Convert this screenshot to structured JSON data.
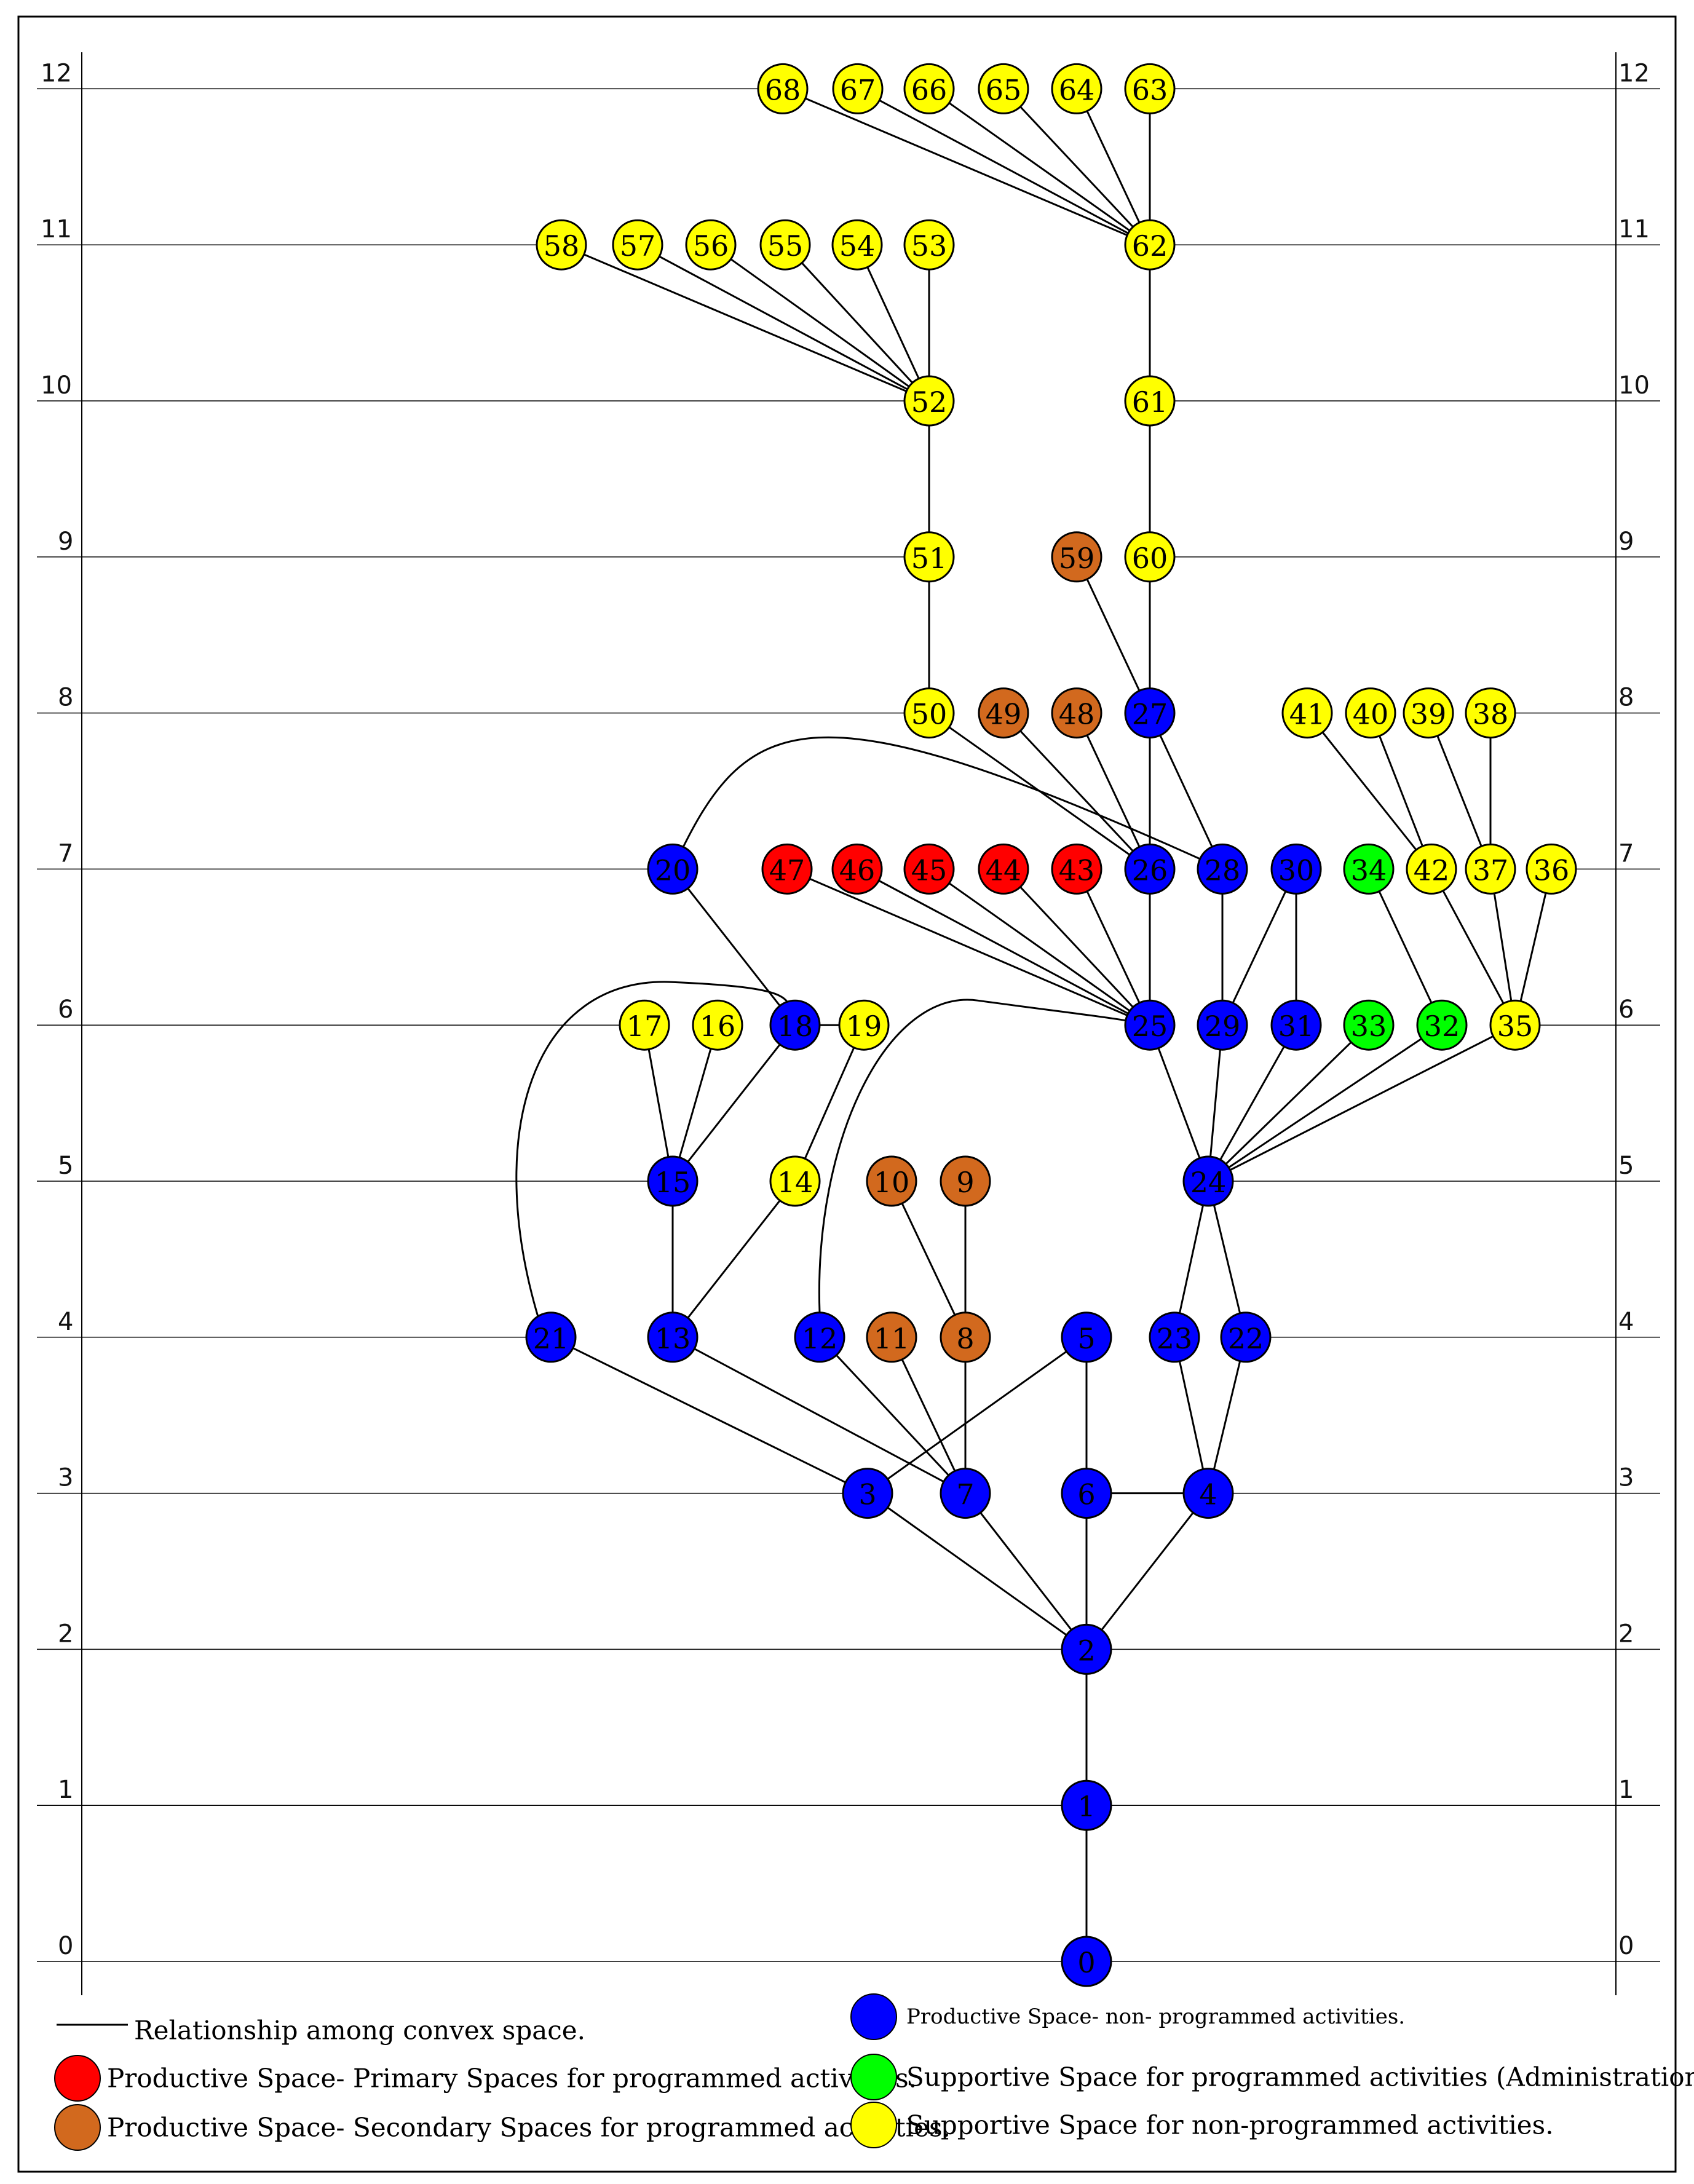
{
  "levels": [
    "0",
    "1",
    "2",
    "3",
    "4",
    "5",
    "6",
    "7",
    "8",
    "9",
    "10",
    "11",
    "12"
  ],
  "colors": {
    "blue": "#0000ff",
    "red": "#ff0000",
    "brown": "#d2691e",
    "green": "#00ff00",
    "yellow": "#ffff00",
    "line": "#000000"
  },
  "nodes": [
    {
      "id": "0",
      "color": "blue",
      "level": 0
    },
    {
      "id": "1",
      "color": "blue",
      "level": 1
    },
    {
      "id": "2",
      "color": "blue",
      "level": 2
    },
    {
      "id": "3",
      "color": "blue",
      "level": 3
    },
    {
      "id": "7",
      "color": "blue",
      "level": 3
    },
    {
      "id": "6",
      "color": "blue",
      "level": 3
    },
    {
      "id": "4",
      "color": "blue",
      "level": 3
    },
    {
      "id": "21",
      "color": "blue",
      "level": 4
    },
    {
      "id": "13",
      "color": "blue",
      "level": 4
    },
    {
      "id": "12",
      "color": "blue",
      "level": 4
    },
    {
      "id": "11",
      "color": "brown",
      "level": 4
    },
    {
      "id": "8",
      "color": "brown",
      "level": 4
    },
    {
      "id": "5",
      "color": "blue",
      "level": 4
    },
    {
      "id": "23",
      "color": "blue",
      "level": 4
    },
    {
      "id": "22",
      "color": "blue",
      "level": 4
    },
    {
      "id": "15",
      "color": "blue",
      "level": 5
    },
    {
      "id": "14",
      "color": "yellow",
      "level": 5
    },
    {
      "id": "10",
      "color": "brown",
      "level": 5
    },
    {
      "id": "9",
      "color": "brown",
      "level": 5
    },
    {
      "id": "24",
      "color": "blue",
      "level": 5
    },
    {
      "id": "17",
      "color": "yellow",
      "level": 6
    },
    {
      "id": "16",
      "color": "yellow",
      "level": 6
    },
    {
      "id": "18",
      "color": "blue",
      "level": 6
    },
    {
      "id": "19",
      "color": "yellow",
      "level": 6
    },
    {
      "id": "25",
      "color": "blue",
      "level": 6
    },
    {
      "id": "29",
      "color": "blue",
      "level": 6
    },
    {
      "id": "31",
      "color": "blue",
      "level": 6
    },
    {
      "id": "33",
      "color": "green",
      "level": 6
    },
    {
      "id": "32",
      "color": "green",
      "level": 6
    },
    {
      "id": "35",
      "color": "yellow",
      "level": 6
    },
    {
      "id": "20",
      "color": "blue",
      "level": 7
    },
    {
      "id": "47",
      "color": "red",
      "level": 7
    },
    {
      "id": "46",
      "color": "red",
      "level": 7
    },
    {
      "id": "45",
      "color": "red",
      "level": 7
    },
    {
      "id": "44",
      "color": "red",
      "level": 7
    },
    {
      "id": "43",
      "color": "red",
      "level": 7
    },
    {
      "id": "26",
      "color": "blue",
      "level": 7
    },
    {
      "id": "28",
      "color": "blue",
      "level": 7
    },
    {
      "id": "30",
      "color": "blue",
      "level": 7
    },
    {
      "id": "34",
      "color": "green",
      "level": 7
    },
    {
      "id": "42",
      "color": "yellow",
      "level": 7
    },
    {
      "id": "37",
      "color": "yellow",
      "level": 7
    },
    {
      "id": "36",
      "color": "yellow",
      "level": 7
    },
    {
      "id": "50",
      "color": "yellow",
      "level": 8
    },
    {
      "id": "49",
      "color": "brown",
      "level": 8
    },
    {
      "id": "48",
      "color": "brown",
      "level": 8
    },
    {
      "id": "27",
      "color": "blue",
      "level": 8
    },
    {
      "id": "41",
      "color": "yellow",
      "level": 8
    },
    {
      "id": "40",
      "color": "yellow",
      "level": 8
    },
    {
      "id": "39",
      "color": "yellow",
      "level": 8
    },
    {
      "id": "38",
      "color": "yellow",
      "level": 8
    },
    {
      "id": "51",
      "color": "yellow",
      "level": 9
    },
    {
      "id": "59",
      "color": "brown",
      "level": 9
    },
    {
      "id": "60",
      "color": "yellow",
      "level": 9
    },
    {
      "id": "52",
      "color": "yellow",
      "level": 10
    },
    {
      "id": "61",
      "color": "yellow",
      "level": 10
    },
    {
      "id": "58",
      "color": "yellow",
      "level": 11
    },
    {
      "id": "57",
      "color": "yellow",
      "level": 11
    },
    {
      "id": "56",
      "color": "yellow",
      "level": 11
    },
    {
      "id": "55",
      "color": "yellow",
      "level": 11
    },
    {
      "id": "54",
      "color": "yellow",
      "level": 11
    },
    {
      "id": "53",
      "color": "yellow",
      "level": 11
    },
    {
      "id": "62",
      "color": "yellow",
      "level": 11
    },
    {
      "id": "68",
      "color": "yellow",
      "level": 12
    },
    {
      "id": "67",
      "color": "yellow",
      "level": 12
    },
    {
      "id": "66",
      "color": "yellow",
      "level": 12
    },
    {
      "id": "65",
      "color": "yellow",
      "level": 12
    },
    {
      "id": "64",
      "color": "yellow",
      "level": 12
    },
    {
      "id": "63",
      "color": "yellow",
      "level": 12
    }
  ],
  "edges": [
    [
      "0",
      "1"
    ],
    [
      "1",
      "2"
    ],
    [
      "2",
      "3"
    ],
    [
      "2",
      "7"
    ],
    [
      "2",
      "6"
    ],
    [
      "2",
      "4"
    ],
    [
      "3",
      "21"
    ],
    [
      "3",
      "5"
    ],
    [
      "7",
      "13"
    ],
    [
      "7",
      "12"
    ],
    [
      "7",
      "11"
    ],
    [
      "7",
      "8"
    ],
    [
      "6",
      "5"
    ],
    [
      "6",
      "4"
    ],
    [
      "4",
      "23"
    ],
    [
      "4",
      "22"
    ],
    [
      "13",
      "15"
    ],
    [
      "13",
      "14"
    ],
    [
      "8",
      "10"
    ],
    [
      "8",
      "9"
    ],
    [
      "24",
      "23"
    ],
    [
      "24",
      "22"
    ],
    [
      "15",
      "17"
    ],
    [
      "15",
      "16"
    ],
    [
      "15",
      "18"
    ],
    [
      "14",
      "19"
    ],
    [
      "18",
      "19"
    ],
    [
      "18",
      "20"
    ],
    [
      "24",
      "25"
    ],
    [
      "24",
      "29"
    ],
    [
      "24",
      "31"
    ],
    [
      "24",
      "33"
    ],
    [
      "24",
      "32"
    ],
    [
      "24",
      "35"
    ],
    [
      "25",
      "26"
    ],
    [
      "25",
      "47"
    ],
    [
      "25",
      "46"
    ],
    [
      "25",
      "45"
    ],
    [
      "25",
      "44"
    ],
    [
      "25",
      "43"
    ],
    [
      "29",
      "28"
    ],
    [
      "29",
      "30"
    ],
    [
      "31",
      "30"
    ],
    [
      "32",
      "34"
    ],
    [
      "35",
      "42"
    ],
    [
      "35",
      "37"
    ],
    [
      "35",
      "36"
    ],
    [
      "26",
      "27"
    ],
    [
      "26",
      "50"
    ],
    [
      "26",
      "49"
    ],
    [
      "26",
      "48"
    ],
    [
      "28",
      "27"
    ],
    [
      "42",
      "41"
    ],
    [
      "42",
      "40"
    ],
    [
      "37",
      "39"
    ],
    [
      "37",
      "38"
    ],
    [
      "50",
      "51"
    ],
    [
      "51",
      "52"
    ],
    [
      "27",
      "59"
    ],
    [
      "27",
      "60"
    ],
    [
      "60",
      "61"
    ],
    [
      "61",
      "62"
    ],
    [
      "52",
      "58"
    ],
    [
      "52",
      "57"
    ],
    [
      "52",
      "56"
    ],
    [
      "52",
      "55"
    ],
    [
      "52",
      "54"
    ],
    [
      "52",
      "53"
    ],
    [
      "62",
      "68"
    ],
    [
      "62",
      "67"
    ],
    [
      "62",
      "66"
    ],
    [
      "62",
      "65"
    ],
    [
      "62",
      "64"
    ],
    [
      "62",
      "63"
    ]
  ],
  "curved_edges": [
    [
      "21",
      "18"
    ],
    [
      "12",
      "25"
    ],
    [
      "20",
      "28"
    ]
  ],
  "legend": {
    "relationship": "Relationship among convex space.",
    "items": [
      {
        "color": "red",
        "label": "Productive Space- Primary Spaces for programmed activities."
      },
      {
        "color": "brown",
        "label": "Productive Space- Secondary Spaces for programmed activities."
      },
      {
        "color": "blue",
        "label": "Productive Space- non- programmed activities."
      },
      {
        "color": "green",
        "label": "Supportive Space for programmed activities (Administration)."
      },
      {
        "color": "yellow",
        "label": "Supportive Space for non-programmed activities."
      }
    ]
  }
}
